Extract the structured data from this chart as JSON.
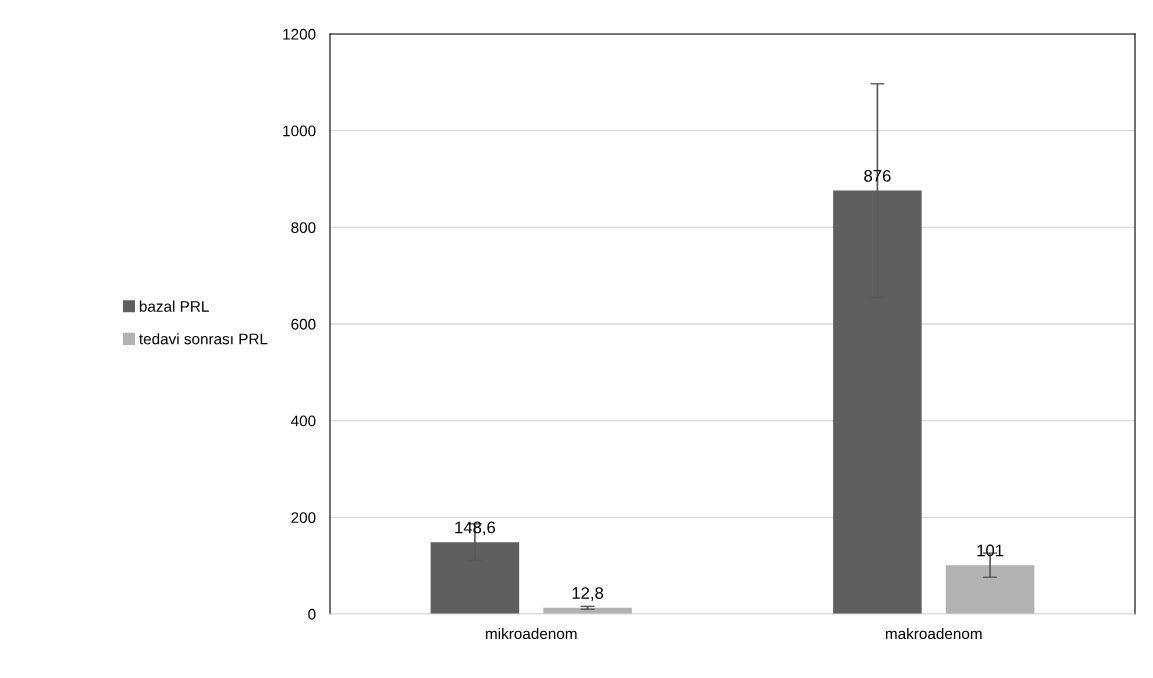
{
  "chart_data": {
    "type": "bar",
    "categories": [
      "mikroadenom",
      "makroadenom"
    ],
    "series": [
      {
        "name": "bazal PRL",
        "color": "#5f5f5f",
        "values": [
          148.6,
          876
        ],
        "errors": [
          38,
          221
        ],
        "value_labels": [
          "148,6",
          "876"
        ]
      },
      {
        "name": "tedavi sonrası PRL",
        "color": "#b2b2b2",
        "values": [
          12.8,
          101
        ],
        "errors": [
          3,
          25
        ],
        "value_labels": [
          "12,8",
          "101"
        ]
      }
    ],
    "ylim": [
      0,
      1200
    ],
    "yticks": [
      0,
      200,
      400,
      600,
      800,
      1000,
      1200
    ],
    "grid": "y",
    "legend": "left"
  }
}
